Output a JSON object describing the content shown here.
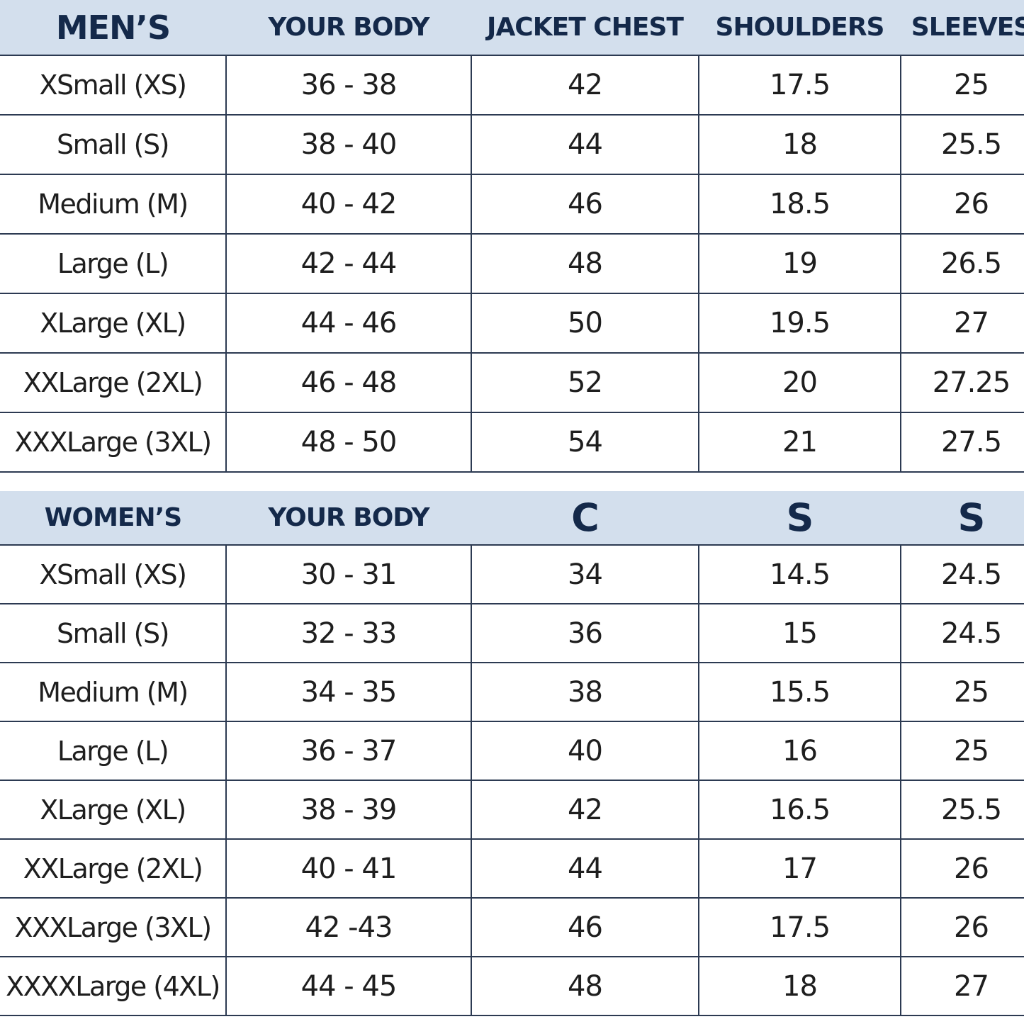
{
  "mens": {
    "headers": [
      "MEN’S",
      "YOUR BODY",
      "JACKET CHEST",
      "SHOULDERS",
      "SLEEVES"
    ],
    "rows": [
      [
        "XSmall (XS)",
        "36 - 38",
        "42",
        "17.5",
        "25"
      ],
      [
        "Small (S)",
        "38 - 40",
        "44",
        "18",
        "25.5"
      ],
      [
        "Medium (M)",
        "40 - 42",
        "46",
        "18.5",
        "26"
      ],
      [
        "Large (L)",
        "42 - 44",
        "48",
        "19",
        "26.5"
      ],
      [
        "XLarge (XL)",
        "44 - 46",
        "50",
        "19.5",
        "27"
      ],
      [
        "XXLarge (2XL)",
        "46 - 48",
        "52",
        "20",
        "27.25"
      ],
      [
        "XXXLarge (3XL)",
        "48 - 50",
        "54",
        "21",
        "27.5"
      ]
    ]
  },
  "womens": {
    "headers": [
      "WOMEN’S",
      "YOUR BODY",
      "C",
      "S",
      "S"
    ],
    "rows": [
      [
        "XSmall (XS)",
        "30 - 31",
        "34",
        "14.5",
        "24.5"
      ],
      [
        "Small (S)",
        "32 - 33",
        "36",
        "15",
        "24.5"
      ],
      [
        "Medium (M)",
        "34 - 35",
        "38",
        "15.5",
        "25"
      ],
      [
        "Large (L)",
        "36 - 37",
        "40",
        "16",
        "25"
      ],
      [
        "XLarge (XL)",
        "38 - 39",
        "42",
        "16.5",
        "25.5"
      ],
      [
        "XXLarge (2XL)",
        "40 - 41",
        "44",
        "17",
        "26"
      ],
      [
        "XXXLarge (3XL)",
        "42 -43",
        "46",
        "17.5",
        "26"
      ],
      [
        "XXXXLarge (4XL)",
        "44 - 45",
        "48",
        "18",
        "27"
      ]
    ]
  }
}
